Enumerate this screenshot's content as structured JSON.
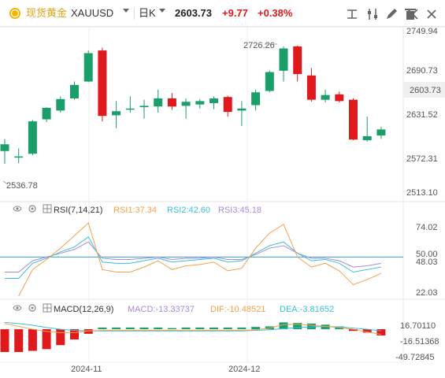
{
  "header": {
    "symbol_name": "现货黄金",
    "symbol_code": "XAUUSD",
    "period": "日K",
    "price": "2603.73",
    "change": "+9.77",
    "change_pct": "+0.38%",
    "tools": [
      "text-tool-icon",
      "sliders-icon",
      "draw-icon",
      "delete-icon",
      "fullscreen-icon",
      "close-icon"
    ]
  },
  "colors": {
    "up": "#1a9e6a",
    "down": "#e0191c",
    "rsi1": "#f5a04a",
    "rsi2": "#3bbfdc",
    "rsi3": "#a78bdb",
    "macd_up": "#1a9e6a",
    "macd_down": "#e0191c",
    "dif": "#f5a04a",
    "dea": "#3bbfdc"
  },
  "chart_data": {
    "type": "candlestick",
    "price_axis_labels": [
      "2749.94",
      "2690.73",
      "2631.52",
      "2572.31",
      "2513.10"
    ],
    "ylim": [
      2513.1,
      2749.94
    ],
    "annotations": {
      "high_label": "2726.26",
      "low_label": "2536.78"
    },
    "x_labels": [
      "2024-11",
      "2024-12"
    ],
    "last_price_label": "2603.73",
    "candles": [
      {
        "o": 2574,
        "h": 2592,
        "l": 2555,
        "c": 2584
      },
      {
        "o": 2565,
        "h": 2578,
        "l": 2556,
        "c": 2566
      },
      {
        "o": 2570,
        "h": 2620,
        "l": 2568,
        "c": 2618
      },
      {
        "o": 2621,
        "h": 2639,
        "l": 2617,
        "c": 2638
      },
      {
        "o": 2634,
        "h": 2655,
        "l": 2631,
        "c": 2651
      },
      {
        "o": 2652,
        "h": 2677,
        "l": 2650,
        "c": 2672
      },
      {
        "o": 2677,
        "h": 2723,
        "l": 2676,
        "c": 2719
      },
      {
        "o": 2723,
        "h": 2727,
        "l": 2618,
        "c": 2626
      },
      {
        "o": 2627,
        "h": 2648,
        "l": 2608,
        "c": 2633
      },
      {
        "o": 2636,
        "h": 2655,
        "l": 2631,
        "c": 2637
      },
      {
        "o": 2639,
        "h": 2650,
        "l": 2622,
        "c": 2641
      },
      {
        "o": 2640,
        "h": 2665,
        "l": 2631,
        "c": 2652
      },
      {
        "o": 2652,
        "h": 2660,
        "l": 2635,
        "c": 2640
      },
      {
        "o": 2641,
        "h": 2652,
        "l": 2622,
        "c": 2647
      },
      {
        "o": 2643,
        "h": 2651,
        "l": 2637,
        "c": 2648
      },
      {
        "o": 2645,
        "h": 2655,
        "l": 2636,
        "c": 2652
      },
      {
        "o": 2654,
        "h": 2656,
        "l": 2625,
        "c": 2632
      },
      {
        "o": 2634,
        "h": 2648,
        "l": 2611,
        "c": 2637
      },
      {
        "o": 2642,
        "h": 2665,
        "l": 2634,
        "c": 2661
      },
      {
        "o": 2663,
        "h": 2693,
        "l": 2661,
        "c": 2691
      },
      {
        "o": 2693,
        "h": 2729,
        "l": 2677,
        "c": 2726
      },
      {
        "o": 2729,
        "h": 2730,
        "l": 2677,
        "c": 2688
      },
      {
        "o": 2686,
        "h": 2697,
        "l": 2647,
        "c": 2650
      },
      {
        "o": 2650,
        "h": 2665,
        "l": 2646,
        "c": 2657
      },
      {
        "o": 2658,
        "h": 2662,
        "l": 2646,
        "c": 2648
      },
      {
        "o": 2650,
        "h": 2652,
        "l": 2590,
        "c": 2591
      },
      {
        "o": 2590,
        "h": 2625,
        "l": 2588,
        "c": 2596
      },
      {
        "o": 2597,
        "h": 2610,
        "l": 2592,
        "c": 2606
      }
    ]
  },
  "rsi": {
    "label": "RSI(7,14,21)",
    "rsi1_label": "RSI1:37.34",
    "rsi2_label": "RSI2:42.60",
    "rsi3_label": "RSI3:45.18",
    "axis_labels": [
      "74.02",
      "50.00",
      "48.03",
      "22.03"
    ],
    "ylim": [
      22.03,
      74.02
    ],
    "midline_value": 50.0,
    "rsi1": [
      null,
      19,
      40,
      48,
      57,
      67,
      77,
      40,
      38,
      38,
      42,
      47,
      40,
      43,
      44,
      46,
      39,
      41,
      57,
      69,
      76,
      50,
      42,
      45,
      39,
      28,
      32,
      37
    ],
    "rsi2": [
      33,
      33,
      45,
      49,
      54,
      58,
      66,
      46,
      45,
      45,
      47,
      49,
      46,
      47,
      48,
      49,
      46,
      47,
      53,
      59,
      62,
      53,
      47,
      48,
      45,
      38,
      40,
      42
    ],
    "rsi3": [
      38,
      38,
      47,
      50,
      53,
      56,
      62,
      49,
      48,
      48,
      49,
      50,
      48,
      49,
      49,
      50,
      48,
      48,
      52,
      57,
      59,
      53,
      49,
      49,
      47,
      42,
      43,
      45
    ]
  },
  "macd": {
    "label": "MACD(12,26,9)",
    "macd_label": "MACD:-13.33737",
    "dif_label": "DIF:-10.48521",
    "dea_label": "DEA:-3.81652",
    "axis_labels": [
      "16.70110",
      "-16.51368",
      "-49.72845"
    ],
    "ylim": [
      -49.72845,
      16.7011
    ],
    "histogram": [
      -40,
      -40,
      -38,
      -35,
      -28,
      -18,
      -8,
      3,
      3,
      3,
      3,
      3,
      2,
      3,
      3,
      3,
      3,
      3,
      4,
      5,
      12,
      11,
      10,
      8,
      5,
      -3,
      -6,
      -11
    ],
    "dif": [
      10,
      5,
      0,
      -4,
      -6,
      -6,
      -3,
      -2,
      -2,
      -2,
      -2,
      -2,
      -2,
      -2,
      -2,
      -2,
      -2,
      -2,
      -1,
      2,
      8,
      9,
      7,
      5,
      3,
      0,
      -5,
      -9
    ],
    "dea": [
      12,
      10,
      7,
      3,
      0,
      -2,
      -3,
      -3,
      -3,
      -3,
      -3,
      -3,
      -3,
      -3,
      -3,
      -3,
      -3,
      -3,
      -2,
      -1,
      1,
      3,
      4,
      5,
      4,
      2,
      0,
      -3
    ]
  }
}
